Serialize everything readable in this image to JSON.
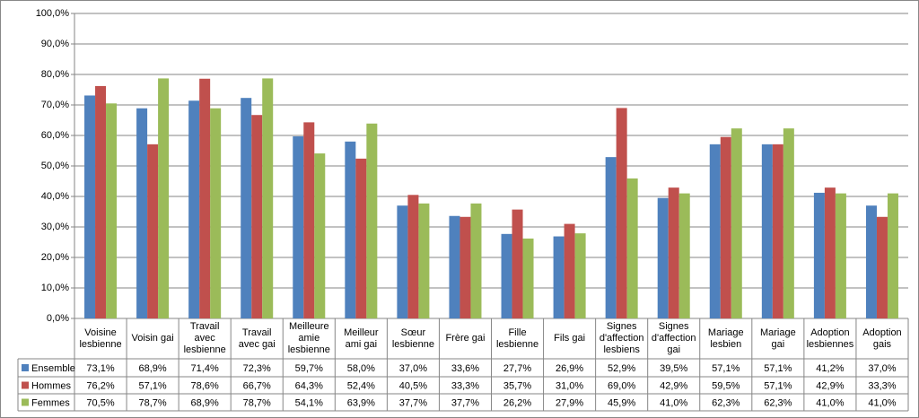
{
  "chart_data": {
    "type": "bar",
    "categories": [
      "Voisine lesbienne",
      "Voisin gai",
      "Travail avec lesbienne",
      "Travail avec gai",
      "Meilleure amie lesbienne",
      "Meilleur ami gai",
      "Sœur lesbienne",
      "Frère gai",
      "Fille lesbienne",
      "Fils gai",
      "Signes d'affection lesbiens",
      "Signes d'affection gai",
      "Mariage lesbien",
      "Mariage gai",
      "Adoption lesbiennes",
      "Adoption gais"
    ],
    "series": [
      {
        "name": "Ensemble",
        "color": "#4f81bd",
        "values": [
          73.1,
          68.9,
          71.4,
          72.3,
          59.7,
          58.0,
          37.0,
          33.6,
          27.7,
          26.9,
          52.9,
          39.5,
          57.1,
          57.1,
          41.2,
          37.0
        ],
        "value_labels": [
          "73,1%",
          "68,9%",
          "71,4%",
          "72,3%",
          "59,7%",
          "58,0%",
          "37,0%",
          "33,6%",
          "27,7%",
          "26,9%",
          "52,9%",
          "39,5%",
          "57,1%",
          "57,1%",
          "41,2%",
          "37,0%"
        ]
      },
      {
        "name": "Hommes",
        "color": "#c0504d",
        "values": [
          76.2,
          57.1,
          78.6,
          66.7,
          64.3,
          52.4,
          40.5,
          33.3,
          35.7,
          31.0,
          69.0,
          42.9,
          59.5,
          57.1,
          42.9,
          33.3
        ],
        "value_labels": [
          "76,2%",
          "57,1%",
          "78,6%",
          "66,7%",
          "64,3%",
          "52,4%",
          "40,5%",
          "33,3%",
          "35,7%",
          "31,0%",
          "69,0%",
          "42,9%",
          "59,5%",
          "57,1%",
          "42,9%",
          "33,3%"
        ]
      },
      {
        "name": "Femmes",
        "color": "#9bbb59",
        "values": [
          70.5,
          78.7,
          68.9,
          78.7,
          54.1,
          63.9,
          37.7,
          37.7,
          26.2,
          27.9,
          45.9,
          41.0,
          62.3,
          62.3,
          41.0,
          41.0
        ],
        "value_labels": [
          "70,5%",
          "78,7%",
          "68,9%",
          "78,7%",
          "54,1%",
          "63,9%",
          "37,7%",
          "37,7%",
          "26,2%",
          "27,9%",
          "45,9%",
          "41,0%",
          "62,3%",
          "62,3%",
          "41,0%",
          "41,0%"
        ]
      }
    ],
    "ylim": [
      0,
      100
    ],
    "yticks": [
      {
        "value": 0,
        "label": "0,0%"
      },
      {
        "value": 10,
        "label": "10,0%"
      },
      {
        "value": 20,
        "label": "20,0%"
      },
      {
        "value": 30,
        "label": "30,0%"
      },
      {
        "value": 40,
        "label": "40,0%"
      },
      {
        "value": 50,
        "label": "50,0%"
      },
      {
        "value": 60,
        "label": "60,0%"
      },
      {
        "value": 70,
        "label": "70,0%"
      },
      {
        "value": 80,
        "label": "80,0%"
      },
      {
        "value": 90,
        "label": "90,0%"
      },
      {
        "value": 100,
        "label": "100,0%"
      }
    ],
    "grid": true
  }
}
